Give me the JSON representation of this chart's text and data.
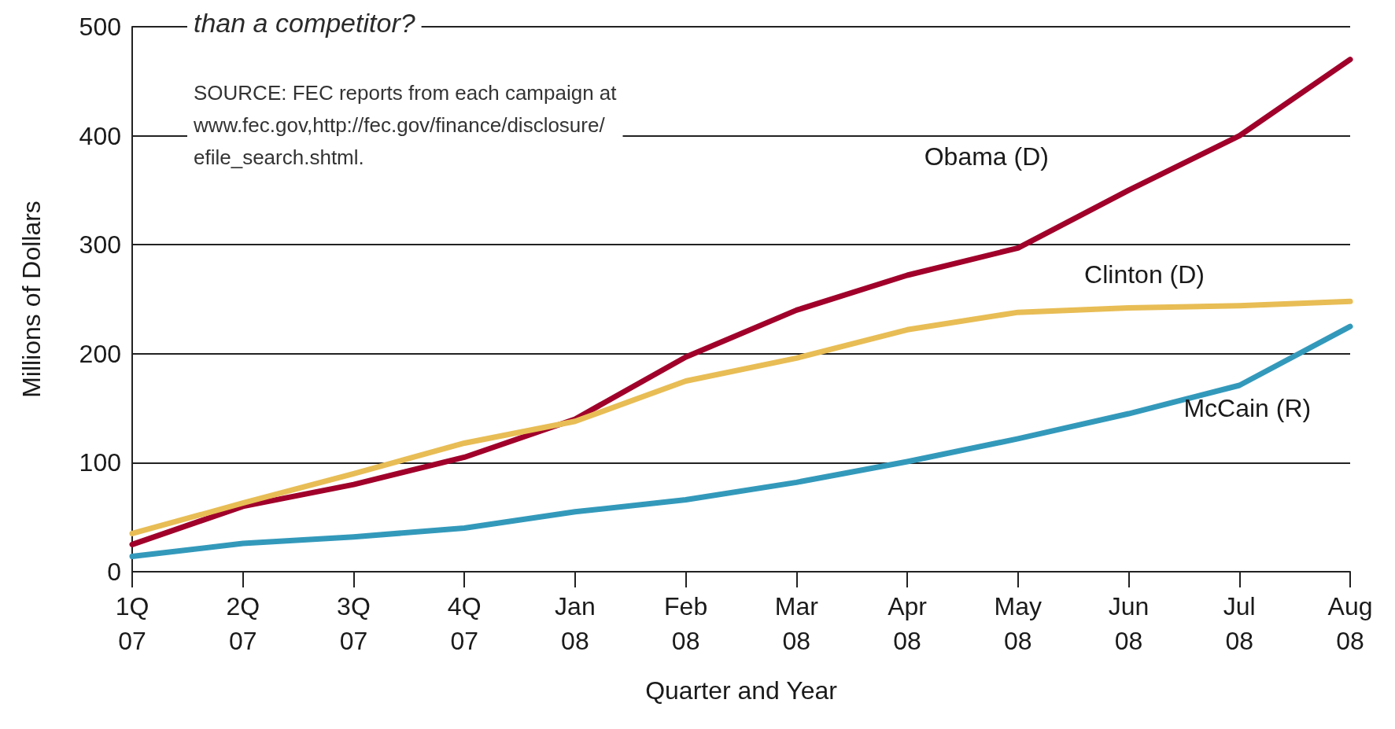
{
  "chart_data": {
    "type": "line",
    "title": "than a competitor?",
    "annotations": [
      "SOURCE: FEC reports from each campaign at\nwww.fec.gov,http://fec.gov/finance/disclosure/\nefile_search.shtml."
    ],
    "xlabel": "Quarter and Year",
    "ylabel": "Millions of Dollars",
    "categories": [
      "1Q\n07",
      "2Q\n07",
      "3Q\n07",
      "4Q\n07",
      "Jan\n08",
      "Feb\n08",
      "Mar\n08",
      "Apr\n08",
      "May\n08",
      "Jun\n08",
      "Jul\n08",
      "Aug\n08"
    ],
    "series": [
      {
        "name": "Obama (D)",
        "color": "#a0002a",
        "values": [
          25,
          60,
          80,
          105,
          140,
          197,
          240,
          272,
          297,
          350,
          400,
          470
        ]
      },
      {
        "name": "Clinton (D)",
        "color": "#e8bd55",
        "values": [
          35,
          63,
          90,
          118,
          138,
          175,
          196,
          222,
          238,
          242,
          244,
          248
        ]
      },
      {
        "name": "McCain (R)",
        "color": "#3399bb",
        "values": [
          14,
          26,
          32,
          40,
          55,
          66,
          82,
          101,
          122,
          145,
          171,
          225
        ]
      }
    ],
    "ylim": [
      0,
      500
    ],
    "yticks": [
      0,
      100,
      200,
      300,
      400,
      500
    ],
    "grid": "y",
    "legend": false,
    "marker": "none",
    "line_style": "solid"
  }
}
